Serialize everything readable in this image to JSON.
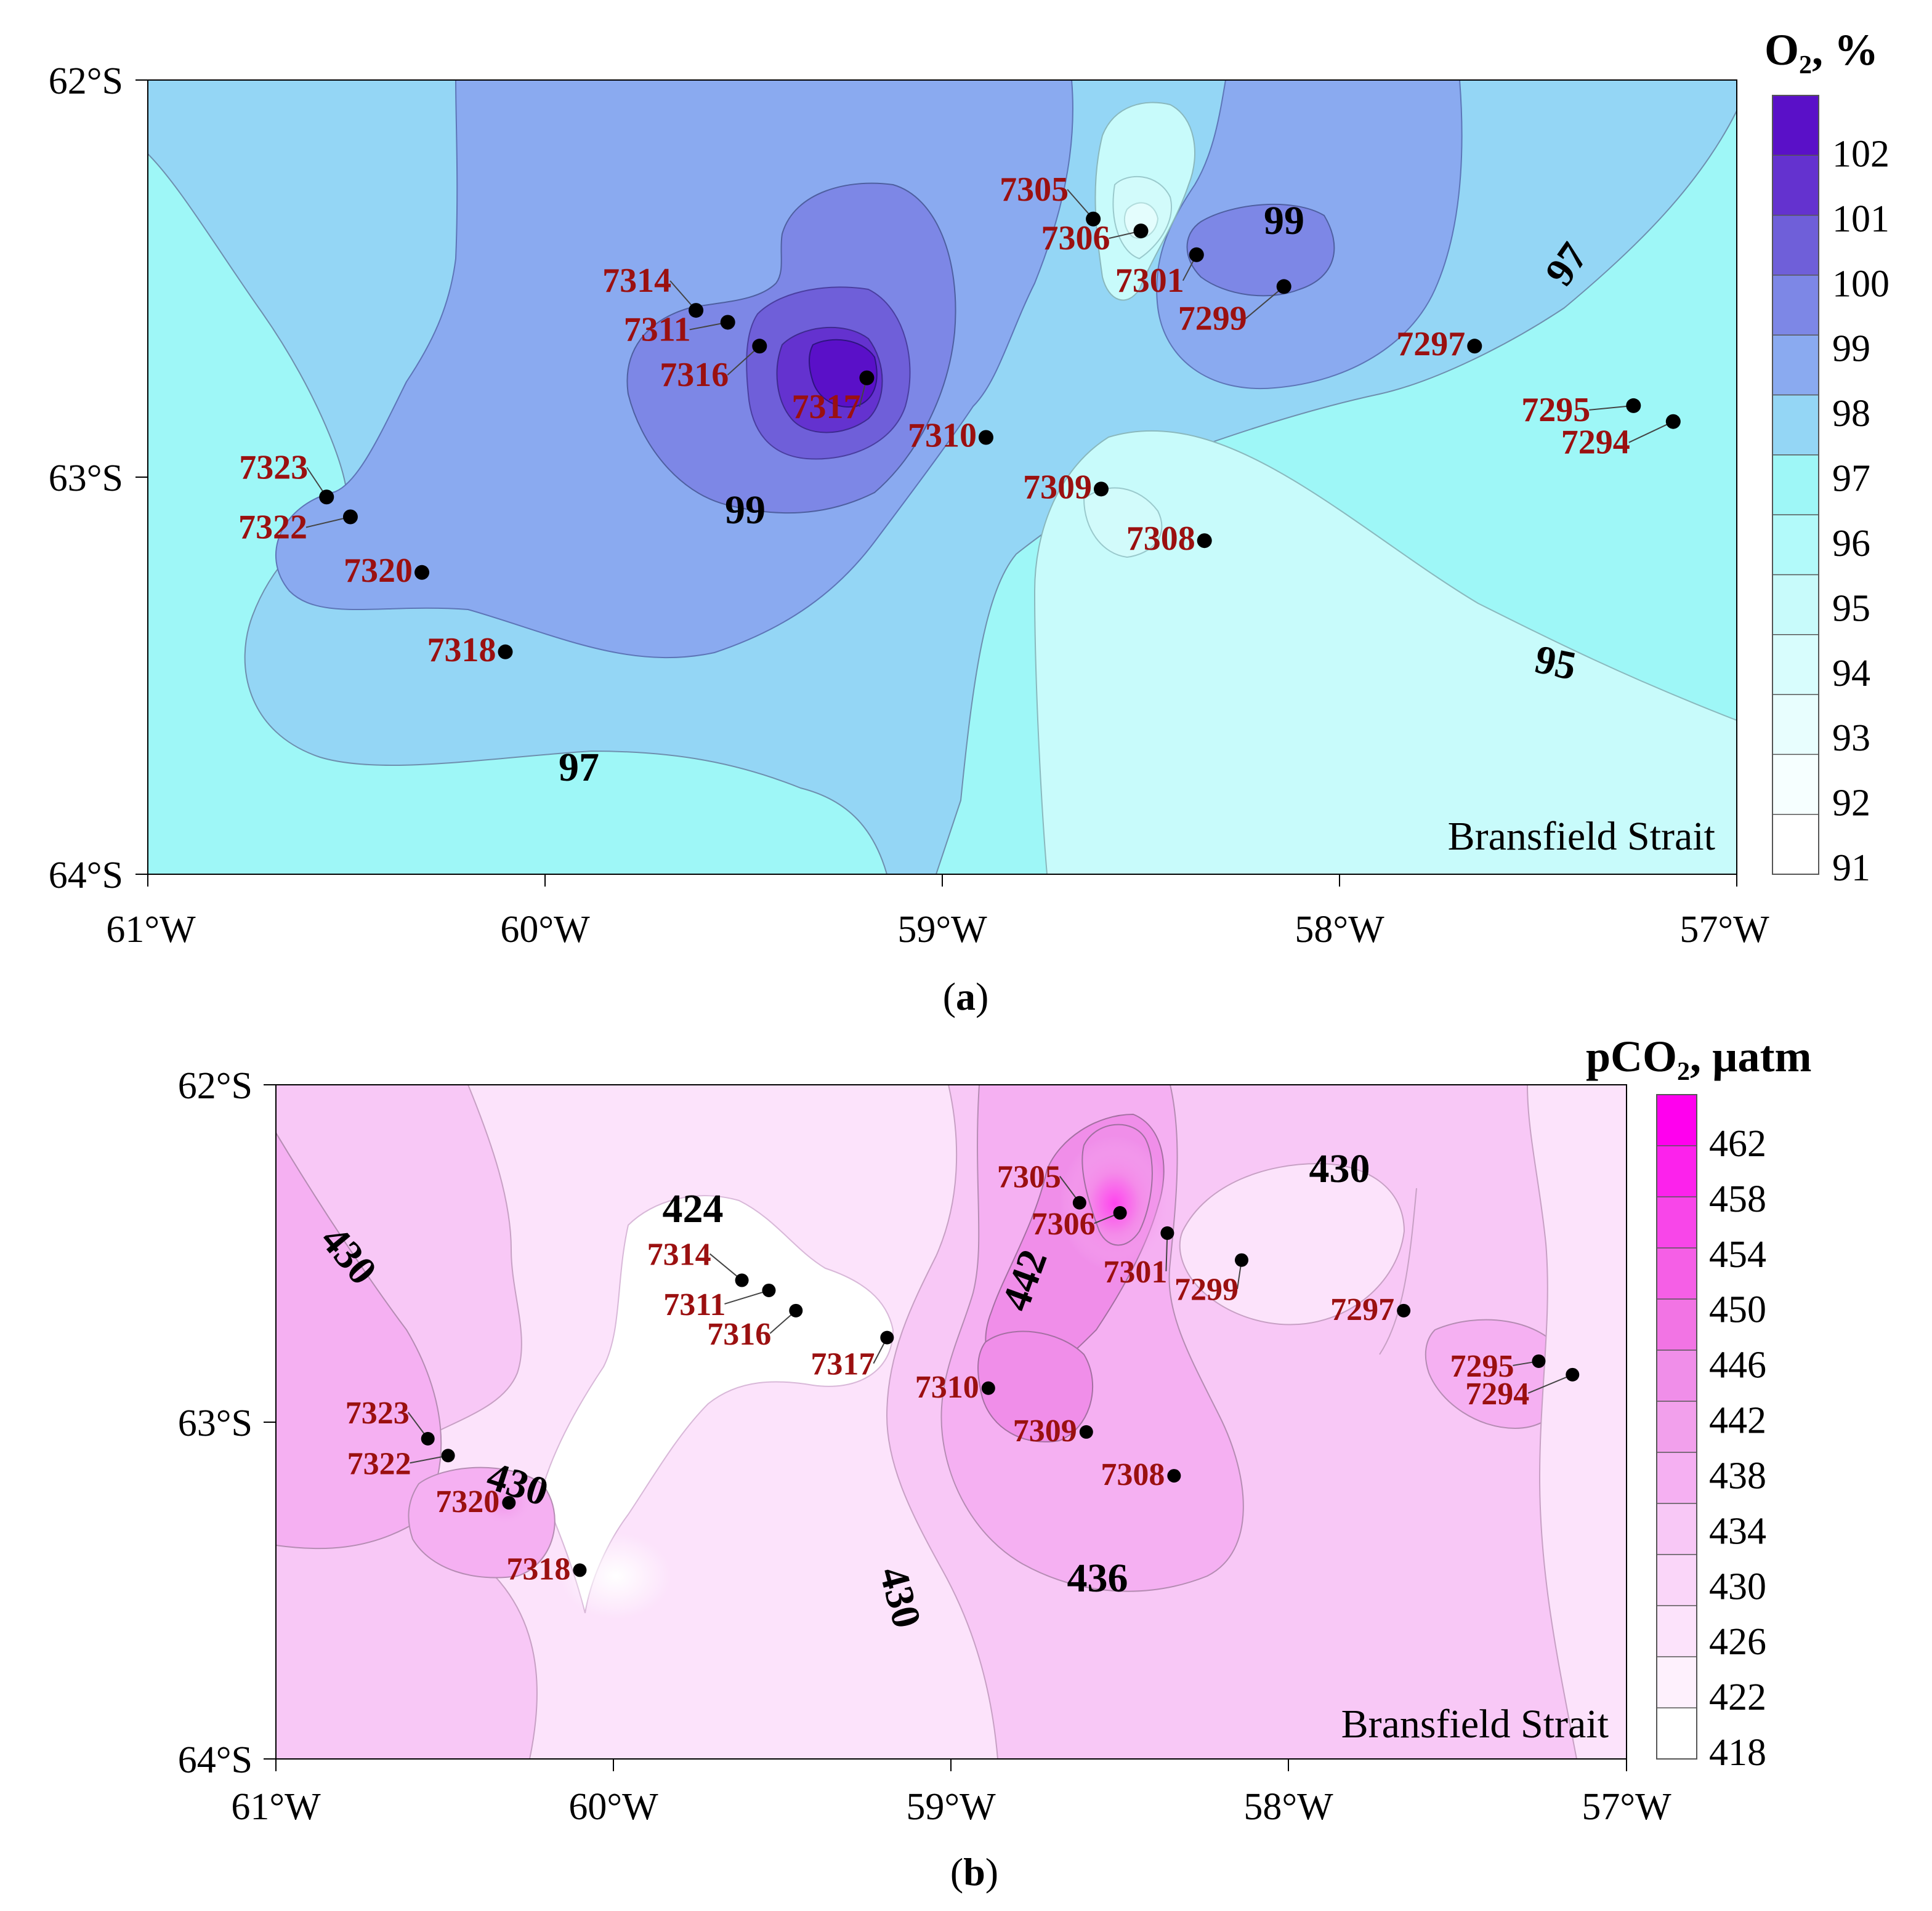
{
  "panels": {
    "a": {
      "tag": "a",
      "legend_title": "O",
      "legend_title_sub": "2",
      "legend_title_unit": ", %",
      "legend_ticks": [
        "102",
        "101",
        "100",
        "99",
        "98",
        "97",
        "96",
        "95",
        "94",
        "93",
        "92",
        "91"
      ],
      "place_label": "Bransfield Strait",
      "contour_labels": [
        "99",
        "99",
        "97",
        "97",
        "95"
      ],
      "colors": {
        "c91": "#ffffff",
        "c95": "#c8fbfb",
        "c96": "#9ef7f7",
        "c97": "#94d6f5",
        "c98": "#8aaaf0",
        "c99": "#7d87e6",
        "c100": "#6f5fd9",
        "c101": "#6432cf",
        "c102": "#5a10c8"
      }
    },
    "b": {
      "tag": "b",
      "legend_title": "pCO",
      "legend_title_sub": "2",
      "legend_title_unit": ", µatm",
      "legend_ticks": [
        "462",
        "458",
        "454",
        "450",
        "446",
        "442",
        "438",
        "434",
        "430",
        "426",
        "422",
        "418"
      ],
      "place_label": "Bransfield Strait",
      "contour_labels": [
        "430",
        "424",
        "442",
        "430",
        "430",
        "430",
        "436"
      ],
      "colors": {
        "c418": "#ffffff",
        "c426": "#fce3fb",
        "c430": "#f8c8f6",
        "c436": "#f5b0f2",
        "c442": "#f08ee9",
        "c450": "#ec5fe3",
        "c462": "#ff00ee"
      }
    }
  },
  "axes": {
    "x_ticks": [
      "61°W",
      "60°W",
      "59°W",
      "58°W",
      "57°W"
    ],
    "y_ticks": [
      "62°S",
      "63°S",
      "64°S"
    ],
    "lon_range": [
      -61,
      -57
    ],
    "lat_range": [
      -64,
      -62
    ]
  },
  "stations": [
    {
      "id": "7294",
      "lon": -57.16,
      "lat": -62.86
    },
    {
      "id": "7295",
      "lon": -57.26,
      "lat": -62.82
    },
    {
      "id": "7297",
      "lon": -57.66,
      "lat": -62.67
    },
    {
      "id": "7299",
      "lon": -58.14,
      "lat": -62.52
    },
    {
      "id": "7301",
      "lon": -58.36,
      "lat": -62.44
    },
    {
      "id": "7305",
      "lon": -58.62,
      "lat": -62.35
    },
    {
      "id": "7306",
      "lon": -58.5,
      "lat": -62.38
    },
    {
      "id": "7308",
      "lon": -58.34,
      "lat": -63.16
    },
    {
      "id": "7309",
      "lon": -58.6,
      "lat": -63.03
    },
    {
      "id": "7310",
      "lon": -58.89,
      "lat": -62.9
    },
    {
      "id": "7311",
      "lon": -59.54,
      "lat": -62.61
    },
    {
      "id": "7314",
      "lon": -59.62,
      "lat": -62.58
    },
    {
      "id": "7316",
      "lon": -59.46,
      "lat": -62.67
    },
    {
      "id": "7317",
      "lon": -59.19,
      "lat": -62.75
    },
    {
      "id": "7318",
      "lon": -60.1,
      "lat": -63.44
    },
    {
      "id": "7320",
      "lon": -60.31,
      "lat": -63.24
    },
    {
      "id": "7322",
      "lon": -60.49,
      "lat": -63.1
    },
    {
      "id": "7323",
      "lon": -60.55,
      "lat": -63.05
    }
  ]
}
